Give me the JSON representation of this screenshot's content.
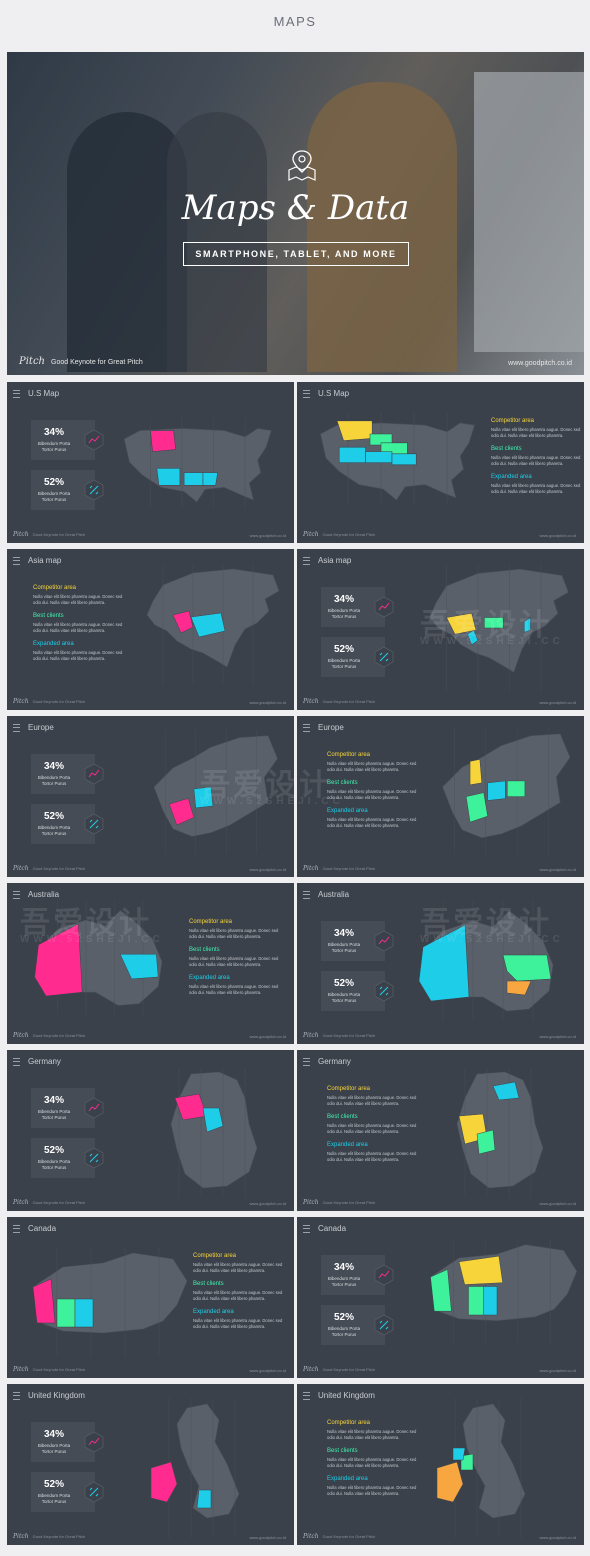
{
  "page_title": "MAPS",
  "hero": {
    "title": "Maps & Data",
    "subtitle": "SMARTPHONE, TABLET, AND MORE",
    "brand": "Pitch",
    "brand_tagline": "Good Keynote for Great Pitch",
    "url": "www.goodpitch.co.id"
  },
  "slide_common": {
    "brand": "Pitch",
    "tagline": "Good Keynote for Great Pitch",
    "url": "www.goodpitch.co.id"
  },
  "stats": [
    {
      "value": "34%",
      "label_line1": "Bibendum Porta",
      "label_line2": "Tortor Purus"
    },
    {
      "value": "52%",
      "label_line1": "Bibendum Porta",
      "label_line2": "Tortor Purus"
    }
  ],
  "legend": [
    {
      "heading": "Competitor area",
      "text": "Nulla vitae elit libero pharetra augue. Donec sed odio dui. Nulla vitae elit libero pharetra."
    },
    {
      "heading": "Best clients",
      "text": "Nulla vitae elit libero pharetra augue. Donec sed odio dui. Nulla vitae elit libero pharetra."
    },
    {
      "heading": "Expanded area",
      "text": "Nulla vitae elit libero pharetra augue. Donec sed odio dui. Nulla vitae elit libero pharetra."
    }
  ],
  "colors": {
    "background": "#efeff1",
    "slide": "#3b414b",
    "map_land": "#5a606a",
    "magenta": "#ff2b8f",
    "cyan": "#1ecde8",
    "yellow": "#f6d43a",
    "green": "#3df29a",
    "orange": "#f7a640",
    "competitor": "#f6d43a",
    "best_clients": "#3df2b0",
    "expanded": "#1ecde8"
  },
  "slides": [
    {
      "title": "U.S Map",
      "layout": "stats",
      "map": "us"
    },
    {
      "title": "U.S Map",
      "layout": "legend",
      "map": "us"
    },
    {
      "title": "Asia map",
      "layout": "legend",
      "map": "asia"
    },
    {
      "title": "Asia map",
      "layout": "stats",
      "map": "asia"
    },
    {
      "title": "Europe",
      "layout": "stats",
      "map": "europe"
    },
    {
      "title": "Europe",
      "layout": "legend",
      "map": "europe"
    },
    {
      "title": "Australia",
      "layout": "legend",
      "map": "australia"
    },
    {
      "title": "Australia",
      "layout": "stats",
      "map": "australia"
    },
    {
      "title": "Germany",
      "layout": "stats",
      "map": "germany"
    },
    {
      "title": "Germany",
      "layout": "legend",
      "map": "germany"
    },
    {
      "title": "Canada",
      "layout": "legend",
      "map": "canada"
    },
    {
      "title": "Canada",
      "layout": "stats",
      "map": "canada"
    },
    {
      "title": "United Kingdom",
      "layout": "stats",
      "map": "uk"
    },
    {
      "title": "United Kingdom",
      "layout": "legend",
      "map": "uk"
    }
  ],
  "watermark": {
    "text": "吾爱设计",
    "url": "WWW.52SHEJI.CC"
  }
}
